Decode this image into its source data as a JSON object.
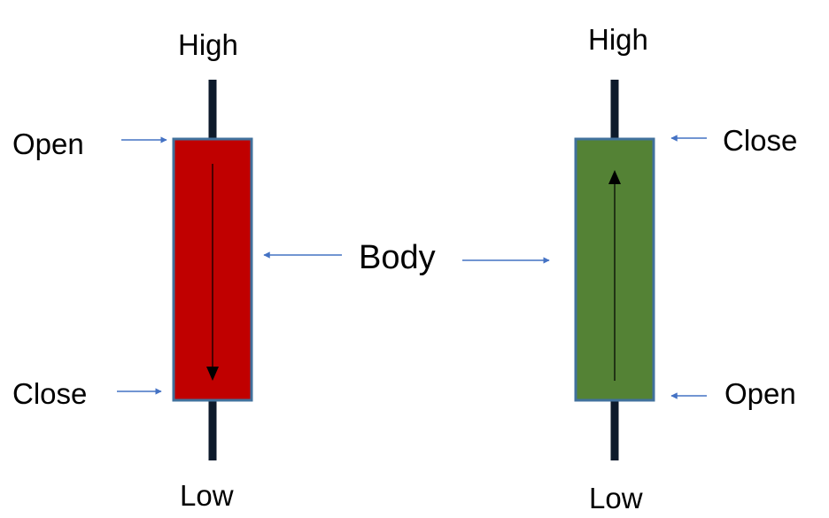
{
  "colors": {
    "bearish_body": "#c00000",
    "bullish_body": "#548235",
    "body_border": "#41719c",
    "wick": "#0d1a2b",
    "pointer_arrow": "#4472c4",
    "direction_arrow": "#000000"
  },
  "bearish_candle": {
    "high_label": "High",
    "low_label": "Low",
    "open_label": "Open",
    "close_label": "Close",
    "direction": "down"
  },
  "bullish_candle": {
    "high_label": "High",
    "low_label": "Low",
    "open_label": "Open",
    "close_label": "Close",
    "direction": "up"
  },
  "center_label": "Body"
}
